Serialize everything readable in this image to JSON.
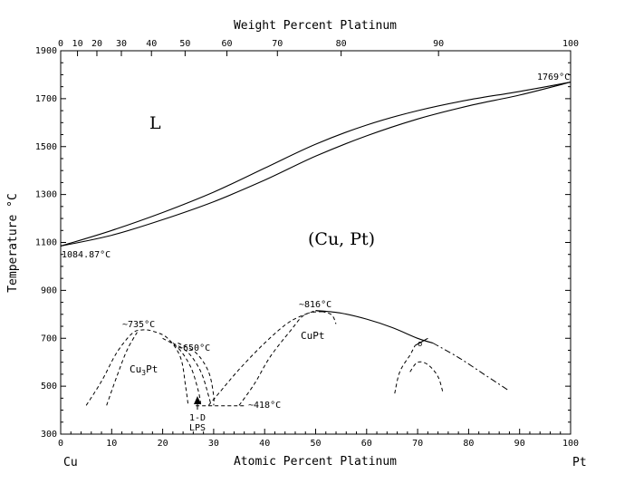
{
  "chart_data": {
    "type": "phase-diagram",
    "top_axis_label": "Weight Percent Platinum",
    "bottom_axis_label": "Atomic Percent Platinum",
    "y_axis_label": "Temperature °C",
    "x_range": [
      0,
      100
    ],
    "y_range": [
      300,
      1900
    ],
    "y_ticks": [
      "300",
      "500",
      "700",
      "900",
      "1100",
      "1300",
      "1500",
      "1700",
      "1900"
    ],
    "y_tick_values": [
      300,
      500,
      700,
      900,
      1100,
      1300,
      1500,
      1700,
      1900
    ],
    "x_ticks": [
      "0",
      "10",
      "20",
      "30",
      "40",
      "50",
      "60",
      "70",
      "80",
      "90",
      "100"
    ],
    "x_tick_values": [
      0,
      10,
      20,
      30,
      40,
      50,
      60,
      70,
      80,
      90,
      100
    ],
    "top_ticks": [
      "0",
      "10",
      "20",
      "30",
      "40",
      "50",
      "60",
      "70",
      "80",
      "90",
      "100"
    ],
    "top_tick_positions_at": [
      0,
      3.3,
      7.1,
      11.9,
      17.8,
      24.4,
      32.6,
      42.5,
      55.0,
      74.1,
      100
    ],
    "left_element": "Cu",
    "right_element": "Pt",
    "liquidus": [
      [
        0,
        1084.87
      ],
      [
        10,
        1150
      ],
      [
        20,
        1225
      ],
      [
        30,
        1310
      ],
      [
        40,
        1410
      ],
      [
        50,
        1510
      ],
      [
        60,
        1590
      ],
      [
        70,
        1650
      ],
      [
        80,
        1695
      ],
      [
        90,
        1730
      ],
      [
        100,
        1769
      ]
    ],
    "solidus": [
      [
        0,
        1084.87
      ],
      [
        10,
        1130
      ],
      [
        20,
        1195
      ],
      [
        30,
        1270
      ],
      [
        40,
        1360
      ],
      [
        50,
        1460
      ],
      [
        60,
        1545
      ],
      [
        70,
        1615
      ],
      [
        80,
        1670
      ],
      [
        90,
        1715
      ],
      [
        100,
        1769
      ]
    ],
    "annotations": {
      "L": "L",
      "cu_pt_solid": "(Cu, Pt)",
      "cu_melting": "1084.87°C",
      "pt_melting": "1769°C",
      "cu3pt_max": "~735°C",
      "t650": "~650°C",
      "cupt_max": "~816°C",
      "t418": "~418°C",
      "cu3pt_phase": "Cu",
      "cu3pt_sub": "3",
      "cu3pt_suffix": "Pt",
      "cupt_phase": "CuPt",
      "one_d": "1-D",
      "lps": "LPS",
      "small_phase": "σ"
    },
    "values": {
      "cu_melting_point": 1084.87,
      "pt_melting_point": 1769,
      "cu3pt_order_max": 735,
      "order_650": 650,
      "cupt_order_max": 816,
      "eutectoid_418": 418
    },
    "cu3pt_dome_outer": [
      [
        5,
        420
      ],
      [
        8,
        520
      ],
      [
        11,
        640
      ],
      [
        14,
        720
      ],
      [
        16,
        735
      ],
      [
        18,
        730
      ],
      [
        21,
        700
      ],
      [
        23.5,
        620
      ],
      [
        24.5,
        500
      ],
      [
        25,
        420
      ]
    ],
    "cu3pt_dome_inner": [
      [
        9,
        420
      ],
      [
        11,
        540
      ],
      [
        13,
        650
      ],
      [
        15,
        725
      ]
    ],
    "ordered_650_1": [
      [
        20,
        700
      ],
      [
        23,
        660
      ],
      [
        25.5,
        580
      ],
      [
        27,
        480
      ],
      [
        27.5,
        420
      ]
    ],
    "ordered_650_2": [
      [
        22,
        680
      ],
      [
        25,
        640
      ],
      [
        27.5,
        560
      ],
      [
        29,
        460
      ],
      [
        29.5,
        420
      ]
    ],
    "lps_boundary": [
      [
        23,
        680
      ],
      [
        26.5,
        640
      ],
      [
        29,
        560
      ],
      [
        30,
        460
      ],
      [
        30,
        420
      ]
    ],
    "cupt_dome_outer": [
      [
        29,
        420
      ],
      [
        31,
        470
      ],
      [
        35,
        570
      ],
      [
        40,
        680
      ],
      [
        45,
        770
      ],
      [
        50,
        816
      ]
    ],
    "cupt_dome_inner": [
      [
        35,
        420
      ],
      [
        38,
        510
      ],
      [
        41,
        620
      ],
      [
        45,
        730
      ],
      [
        48,
        800
      ],
      [
        52,
        812
      ]
    ],
    "cupt_right_inner": [
      [
        50,
        816
      ],
      [
        53,
        800
      ],
      [
        54,
        760
      ]
    ],
    "cupt_right_solid": [
      [
        50,
        816
      ],
      [
        55,
        805
      ],
      [
        60,
        780
      ],
      [
        65,
        745
      ],
      [
        70,
        700
      ],
      [
        73,
        680
      ]
    ],
    "cupt_right_dashdot": [
      [
        73,
        680
      ],
      [
        78,
        620
      ],
      [
        83,
        550
      ],
      [
        88,
        480
      ]
    ],
    "horizontal_418": [
      [
        26.5,
        418
      ],
      [
        36,
        418
      ]
    ],
    "small_dome": [
      [
        65.5,
        470
      ],
      [
        66.5,
        560
      ],
      [
        68.5,
        630
      ],
      [
        69.5,
        670
      ]
    ],
    "small_dome_right": [
      [
        69.5,
        670
      ],
      [
        72,
        700
      ]
    ],
    "bottom_dome": [
      [
        68.5,
        560
      ],
      [
        70,
        600
      ],
      [
        72,
        590
      ],
      [
        74,
        540
      ],
      [
        75,
        470
      ]
    ]
  }
}
